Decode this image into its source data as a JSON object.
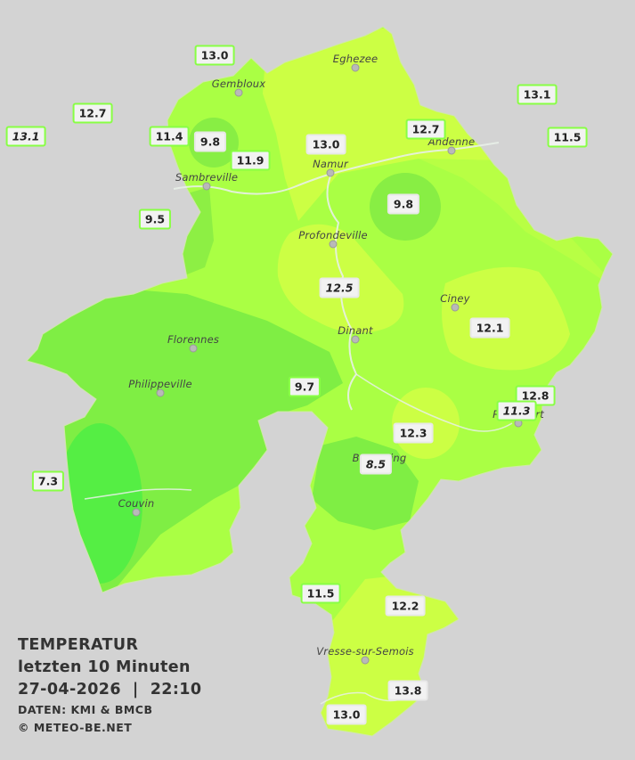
{
  "legend": {
    "title": "TEMPERATUR",
    "subtitle": "letzten 10 Minuten",
    "datetime": "27-04-2026  |  22:10",
    "source": "DATEN: KMI & BMCB",
    "copyright": "© METEO-BE.NET"
  },
  "colors": {
    "background": "#d3d3d3",
    "warm_yellow": "#ccff44",
    "mid_green": "#aaff44",
    "cool_green": "#7fee44",
    "cold_green": "#55ee44"
  },
  "cities": [
    {
      "name": "Eghezee"
    },
    {
      "name": "Gembloux"
    },
    {
      "name": "Andenne"
    },
    {
      "name": "Namur"
    },
    {
      "name": "Sambreville"
    },
    {
      "name": "Profondeville"
    },
    {
      "name": "Ciney"
    },
    {
      "name": "Dinant"
    },
    {
      "name": "Florennes"
    },
    {
      "name": "Philippeville"
    },
    {
      "name": "Rochefort"
    },
    {
      "name": "Beauraing"
    },
    {
      "name": "Couvin"
    },
    {
      "name": "Vresse-sur-Semois"
    }
  ],
  "stations": [
    {
      "value": "13.0"
    },
    {
      "value": "12.7"
    },
    {
      "value": "13.1"
    },
    {
      "value": "11.4"
    },
    {
      "value": "9.8"
    },
    {
      "value": "11.9"
    },
    {
      "value": "13.0"
    },
    {
      "value": "12.7"
    },
    {
      "value": "13.1"
    },
    {
      "value": "11.5"
    },
    {
      "value": "9.5"
    },
    {
      "value": "9.8"
    },
    {
      "value": "12.5"
    },
    {
      "value": "12.1"
    },
    {
      "value": "9.7"
    },
    {
      "value": "12.8"
    },
    {
      "value": "11.3"
    },
    {
      "value": "12.3"
    },
    {
      "value": "8.5"
    },
    {
      "value": "7.3"
    },
    {
      "value": "11.5"
    },
    {
      "value": "12.2"
    },
    {
      "value": "13.8"
    },
    {
      "value": "13.0"
    }
  ]
}
